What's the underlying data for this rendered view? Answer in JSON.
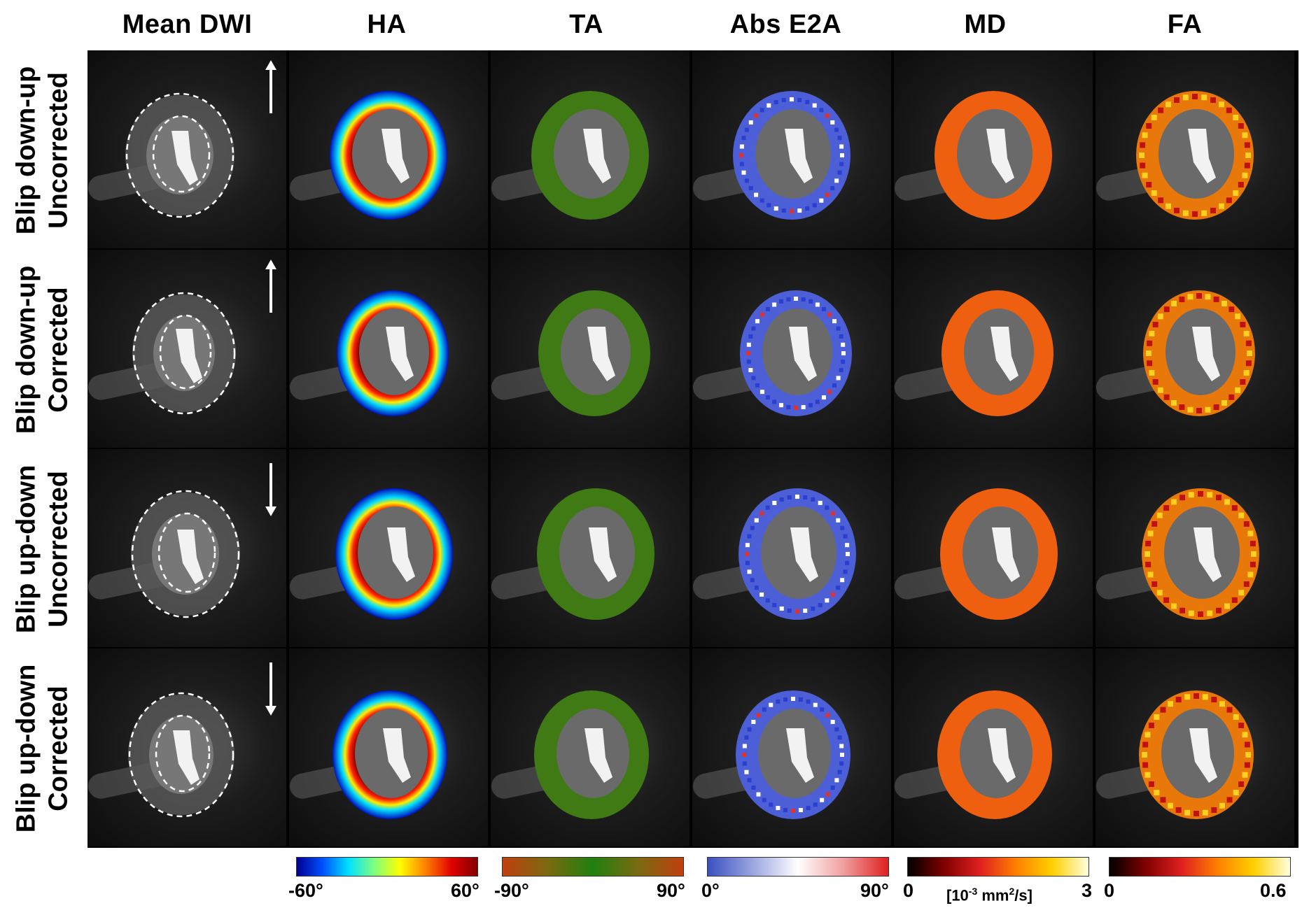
{
  "columns": [
    "Mean DWI",
    "HA",
    "TA",
    "Abs E2A",
    "MD",
    "FA"
  ],
  "rows": [
    {
      "line1": "Blip down-up",
      "line2": "Uncorrected",
      "arrow": "up"
    },
    {
      "line1": "Blip down-up",
      "line2": "Corrected",
      "arrow": "up"
    },
    {
      "line1": "Blip up-down",
      "line2": "Uncorrected",
      "arrow": "down"
    },
    {
      "line1": "Blip up-down",
      "line2": "Corrected",
      "arrow": "down"
    }
  ],
  "colorbars": [
    {
      "map": "HA",
      "min": "-60°",
      "max": "60°",
      "colors": [
        "#00008f",
        "#0050ff",
        "#00e0ff",
        "#7fff7f",
        "#ffff00",
        "#ff7f00",
        "#e00000",
        "#800000"
      ]
    },
    {
      "map": "TA",
      "min": "-90°",
      "max": "90°",
      "colors": [
        "#c04010",
        "#7a6a10",
        "#208010",
        "#7a6a10",
        "#c04010"
      ]
    },
    {
      "map": "Abs E2A",
      "min": "0°",
      "max": "90°",
      "colors": [
        "#3a50c0",
        "#9aa6e0",
        "#ffffff",
        "#f0a0a0",
        "#e02020"
      ]
    },
    {
      "map": "MD",
      "min": "0",
      "max": "3",
      "unit_prefix": "[10",
      "unit_exp": "-3",
      "unit_mid": " mm",
      "unit_exp2": "2",
      "unit_suffix": "/s]",
      "colors": [
        "#000000",
        "#800000",
        "#e02020",
        "#ff8000",
        "#ffd000",
        "#ffffe0"
      ]
    },
    {
      "map": "FA",
      "min": "0",
      "max": "0.6",
      "colors": [
        "#000000",
        "#800000",
        "#e02020",
        "#ff8000",
        "#ffd000",
        "#ffffe0"
      ]
    }
  ],
  "icons": {
    "arrow_up": "arrow-up-icon",
    "arrow_down": "arrow-down-icon"
  },
  "map_colors": {
    "HA": "conic",
    "TA": "#3f7a14",
    "E2A": "#4d5fd6",
    "MD": "#ee6010",
    "FA": "#e8780a"
  }
}
